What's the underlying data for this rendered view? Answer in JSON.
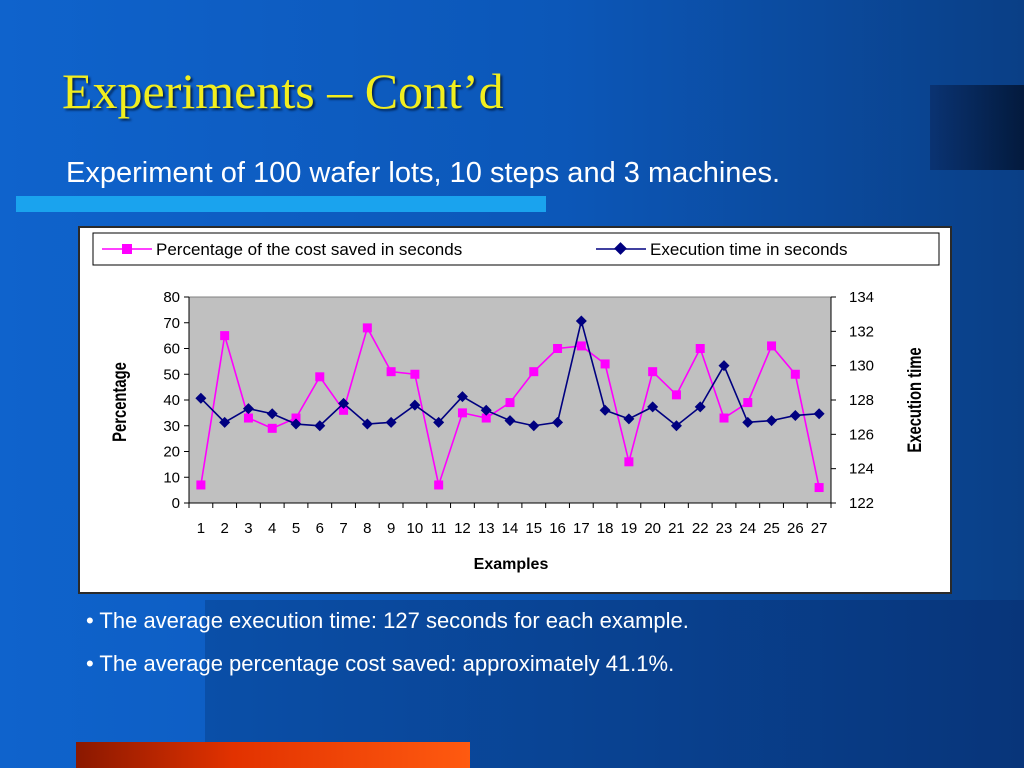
{
  "slide": {
    "title": "Experiments – Cont’d",
    "subtitle": "Experiment of 100 wafer lots, 10 steps and 3 machines.",
    "bullets": [
      "• The average execution time: 127 seconds for each example.",
      "• The average percentage cost saved: approximately 41.1%."
    ]
  },
  "colors": {
    "background": "#0b5fc6",
    "title": "#f2ee1e",
    "plot_area": "#c0c0c0",
    "series_percentage": "#ff00ff",
    "series_execution": "#000080",
    "accent_bar": "#1aa3ee",
    "bottom_bar": "#e23200"
  },
  "chart_data": {
    "type": "line",
    "title": "",
    "xlabel": "Examples",
    "ylabel": "Percentage",
    "y2label": "Execution time",
    "x": [
      "1",
      "2",
      "3",
      "4",
      "5",
      "6",
      "7",
      "8",
      "9",
      "10",
      "11",
      "12",
      "13",
      "14",
      "15",
      "16",
      "17",
      "18",
      "19",
      "20",
      "21",
      "22",
      "23",
      "24",
      "25",
      "26",
      "27"
    ],
    "ylim": [
      0,
      80
    ],
    "yticks": [
      "0",
      "10",
      "20",
      "30",
      "40",
      "50",
      "60",
      "70",
      "80"
    ],
    "y2lim": [
      122,
      134
    ],
    "y2ticks": [
      "122",
      "124",
      "126",
      "128",
      "130",
      "132",
      "134"
    ],
    "grid": false,
    "legend_position": "top",
    "series": [
      {
        "name": "Percentage of the cost saved in seconds",
        "axis": "left",
        "marker": "square",
        "values": [
          7,
          65,
          33,
          29,
          33,
          49,
          36,
          68,
          51,
          50,
          7,
          35,
          33,
          39,
          51,
          60,
          61,
          54,
          16,
          51,
          42,
          60,
          33,
          39,
          61,
          50,
          6
        ]
      },
      {
        "name": "Execution time in seconds",
        "axis": "right",
        "marker": "diamond",
        "values": [
          128.1,
          126.7,
          127.5,
          127.2,
          126.6,
          126.5,
          127.8,
          126.6,
          126.7,
          127.7,
          126.7,
          128.2,
          127.4,
          126.8,
          126.5,
          126.7,
          132.6,
          127.4,
          126.9,
          127.6,
          126.5,
          127.6,
          130.0,
          126.7,
          126.8,
          127.1,
          127.2
        ]
      }
    ]
  }
}
